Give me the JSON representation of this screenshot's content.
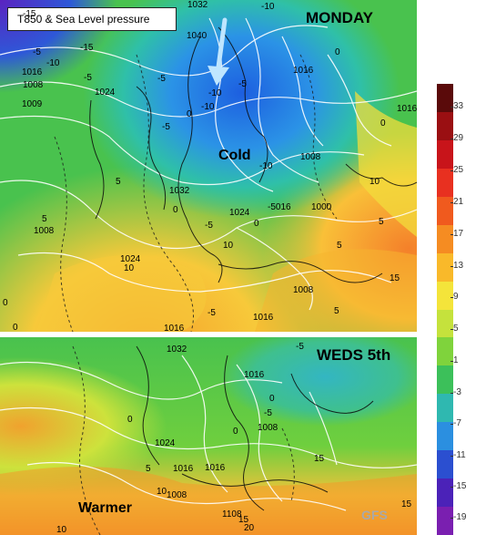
{
  "map": {
    "title": "T850 & Sea Level pressure",
    "top_day_label": "MONDAY",
    "bottom_day_label": "WEDS 5th",
    "cold_label": "Cold",
    "warmer_label": "Warmer",
    "source_label": "GFS"
  },
  "top_isolines": [
    "1032",
    "-10",
    "1040",
    "-15",
    "1016",
    "-5",
    "1008",
    "-5",
    "1024",
    "1009",
    "-10",
    "-5",
    "-10",
    "1016",
    "0",
    "0",
    "-5",
    "-10",
    "-15",
    "-5",
    "-10",
    "1008",
    "10",
    "1032",
    "0",
    "5",
    "5",
    "1008",
    "-5",
    "1024",
    "-5016",
    "1000",
    "5",
    "0",
    "1024",
    "10",
    "10",
    "5",
    "1008",
    "0",
    "5",
    "15",
    "0",
    "1016",
    "1016",
    "-5",
    "0",
    "1016"
  ],
  "bottom_isolines": [
    "1032",
    "-5",
    "1016",
    "0",
    "-5",
    "1008",
    "0",
    "1024",
    "1016",
    "1016",
    "5",
    "10",
    "1008",
    "15",
    "1108",
    "15",
    "20",
    "10",
    "15",
    "0"
  ],
  "scale": {
    "labels": [
      "33",
      "29",
      "25",
      "21",
      "17",
      "13",
      "9",
      "5",
      "1",
      "-3",
      "-7",
      "-11",
      "-15",
      "-19"
    ],
    "colors": [
      "#5a0a0a",
      "#9a0f12",
      "#c8141a",
      "#e83020",
      "#f05a1e",
      "#f58c22",
      "#f9b92a",
      "#f4e43a",
      "#c5e23c",
      "#7fd33c",
      "#3cc05a",
      "#2fb8b0",
      "#2b8fe0",
      "#2b4fd0",
      "#4b22b8",
      "#7a1fb0"
    ]
  }
}
